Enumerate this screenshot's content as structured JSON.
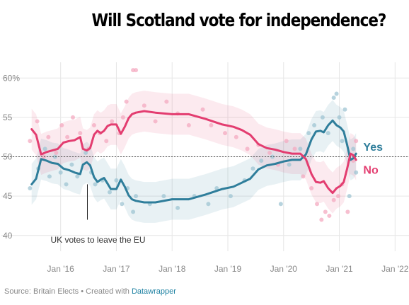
{
  "chart_data": {
    "type": "line",
    "title": "Will Scotland vote for independence?",
    "ylim": [
      38,
      62
    ],
    "xlim": [
      2015.42,
      2022.25
    ],
    "yticks": [
      40,
      45,
      50,
      55,
      60
    ],
    "ytick_labels": [
      "40",
      "45",
      "50",
      "55",
      "60%"
    ],
    "xticks": [
      2016,
      2017,
      2018,
      2019,
      2020,
      2021,
      2022
    ],
    "xtick_labels": [
      "Jan '16",
      "Jan '17",
      "Jan '18",
      "Jan '19",
      "Jan '20",
      "Jan '21",
      "Jan '22"
    ],
    "grid": true,
    "reference_line": 50,
    "series": [
      {
        "name": "Yes",
        "color": "#2f7e9b",
        "x": [
          2015.48,
          2015.56,
          2015.65,
          2015.75,
          2015.85,
          2015.95,
          2016.05,
          2016.15,
          2016.25,
          2016.35,
          2016.4,
          2016.47,
          2016.53,
          2016.6,
          2016.66,
          2016.72,
          2016.78,
          2016.84,
          2016.9,
          2017.0,
          2017.08,
          2017.15,
          2017.22,
          2017.28,
          2017.35,
          2017.5,
          2017.7,
          2018.0,
          2018.3,
          2018.6,
          2018.9,
          2019.1,
          2019.25,
          2019.4,
          2019.55,
          2019.7,
          2019.85,
          2020.0,
          2020.15,
          2020.3,
          2020.4,
          2020.5,
          2020.58,
          2020.66,
          2020.72,
          2020.8,
          2020.88,
          2020.95,
          2021.02,
          2021.08,
          2021.14,
          2021.2,
          2021.25,
          2021.3
        ],
        "y": [
          46.5,
          47.2,
          49.7,
          49.5,
          49.2,
          49.1,
          48.5,
          48.3,
          48.0,
          47.8,
          49.0,
          49.3,
          48.9,
          47.4,
          46.8,
          47.1,
          47.3,
          46.6,
          45.9,
          45.9,
          47.1,
          46.2,
          45.1,
          44.6,
          44.4,
          44.2,
          44.2,
          44.6,
          44.6,
          45.2,
          45.9,
          46.2,
          46.7,
          47.2,
          48.4,
          48.9,
          49.1,
          49.4,
          49.6,
          49.6,
          50.3,
          52.2,
          53.2,
          53.3,
          53.1,
          54.0,
          54.6,
          54.0,
          53.7,
          53.2,
          51.5,
          49.6,
          49.8,
          50.4
        ]
      },
      {
        "name": "No",
        "color": "#e33d70",
        "x": [
          2015.48,
          2015.56,
          2015.65,
          2015.75,
          2015.85,
          2015.95,
          2016.05,
          2016.15,
          2016.25,
          2016.35,
          2016.4,
          2016.47,
          2016.53,
          2016.6,
          2016.66,
          2016.72,
          2016.78,
          2016.84,
          2016.9,
          2017.0,
          2017.08,
          2017.15,
          2017.22,
          2017.28,
          2017.35,
          2017.5,
          2017.7,
          2018.0,
          2018.3,
          2018.6,
          2018.9,
          2019.1,
          2019.25,
          2019.4,
          2019.55,
          2019.7,
          2019.85,
          2020.0,
          2020.15,
          2020.3,
          2020.4,
          2020.5,
          2020.58,
          2020.66,
          2020.72,
          2020.8,
          2020.88,
          2020.95,
          2021.02,
          2021.08,
          2021.14,
          2021.2,
          2021.25,
          2021.3
        ],
        "y": [
          53.5,
          52.8,
          50.3,
          50.6,
          50.8,
          51.0,
          51.8,
          52.0,
          52.1,
          52.5,
          51.0,
          50.8,
          51.1,
          52.8,
          53.3,
          53.0,
          53.3,
          53.9,
          54.1,
          54.1,
          52.9,
          53.8,
          54.9,
          55.4,
          55.6,
          55.8,
          55.6,
          55.4,
          55.4,
          54.8,
          54.1,
          53.8,
          53.4,
          52.8,
          51.6,
          51.1,
          50.9,
          50.6,
          50.4,
          50.4,
          49.7,
          47.8,
          46.8,
          46.7,
          46.9,
          46.0,
          45.4,
          46.0,
          46.3,
          46.8,
          48.5,
          50.4,
          50.2,
          49.6
        ]
      }
    ],
    "polls": [
      {
        "series": "Yes",
        "points": [
          [
            2015.45,
            46.0
          ],
          [
            2015.6,
            48.5
          ],
          [
            2015.72,
            51.0
          ],
          [
            2015.8,
            47.5
          ],
          [
            2015.9,
            50.0
          ],
          [
            2016.0,
            48.0
          ],
          [
            2016.1,
            46.5
          ],
          [
            2016.2,
            49.0
          ],
          [
            2016.3,
            47.5
          ],
          [
            2016.45,
            50.5
          ],
          [
            2016.55,
            48.0
          ],
          [
            2016.62,
            46.5
          ],
          [
            2016.75,
            47.0
          ],
          [
            2016.88,
            45.5
          ],
          [
            2017.0,
            47.0
          ],
          [
            2017.1,
            44.0
          ],
          [
            2017.2,
            46.0
          ],
          [
            2017.3,
            43.0
          ],
          [
            2017.35,
            45.0
          ],
          [
            2017.6,
            44.0
          ],
          [
            2017.85,
            45.0
          ],
          [
            2018.1,
            43.5
          ],
          [
            2018.4,
            45.0
          ],
          [
            2018.65,
            44.0
          ],
          [
            2018.8,
            46.0
          ],
          [
            2019.05,
            45.0
          ],
          [
            2019.3,
            47.0
          ],
          [
            2019.45,
            48.5
          ],
          [
            2019.6,
            49.5
          ],
          [
            2019.8,
            50.0
          ],
          [
            2019.95,
            44.0
          ],
          [
            2020.1,
            49.0
          ],
          [
            2020.3,
            51.0
          ],
          [
            2020.45,
            53.0
          ],
          [
            2020.55,
            54.0
          ],
          [
            2020.7,
            55.0
          ],
          [
            2020.8,
            53.0
          ],
          [
            2020.9,
            57.5
          ],
          [
            2020.95,
            58.0
          ],
          [
            2021.0,
            55.0
          ],
          [
            2021.05,
            52.0
          ],
          [
            2021.1,
            56.0
          ],
          [
            2021.18,
            45.0
          ],
          [
            2021.25,
            51.0
          ],
          [
            2021.3,
            48.0
          ]
        ]
      },
      {
        "series": "No",
        "points": [
          [
            2015.45,
            52.0
          ],
          [
            2015.58,
            54.5
          ],
          [
            2015.7,
            50.0
          ],
          [
            2015.78,
            52.5
          ],
          [
            2015.92,
            50.5
          ],
          [
            2016.02,
            54.0
          ],
          [
            2016.12,
            52.5
          ],
          [
            2016.22,
            55.0
          ],
          [
            2016.35,
            53.0
          ],
          [
            2016.5,
            51.0
          ],
          [
            2016.6,
            54.0
          ],
          [
            2016.7,
            53.0
          ],
          [
            2016.82,
            52.0
          ],
          [
            2016.92,
            54.5
          ],
          [
            2017.05,
            53.0
          ],
          [
            2017.12,
            55.0
          ],
          [
            2017.18,
            57.0
          ],
          [
            2017.3,
            61.0
          ],
          [
            2017.35,
            61.0
          ],
          [
            2017.5,
            56.5
          ],
          [
            2017.7,
            54.5
          ],
          [
            2017.9,
            57.0
          ],
          [
            2018.1,
            55.5
          ],
          [
            2018.3,
            54.0
          ],
          [
            2018.55,
            56.0
          ],
          [
            2018.7,
            54.0
          ],
          [
            2018.95,
            53.0
          ],
          [
            2019.15,
            52.5
          ],
          [
            2019.35,
            51.0
          ],
          [
            2019.55,
            51.5
          ],
          [
            2019.75,
            50.5
          ],
          [
            2019.9,
            49.0
          ],
          [
            2020.05,
            52.0
          ],
          [
            2020.2,
            51.0
          ],
          [
            2020.35,
            47.5
          ],
          [
            2020.5,
            46.0
          ],
          [
            2020.6,
            44.0
          ],
          [
            2020.68,
            42.0
          ],
          [
            2020.75,
            43.0
          ],
          [
            2020.82,
            42.5
          ],
          [
            2020.9,
            44.5
          ],
          [
            2020.98,
            45.0
          ],
          [
            2021.05,
            46.5
          ],
          [
            2021.15,
            43.0
          ],
          [
            2021.25,
            49.5
          ],
          [
            2021.3,
            52.0
          ]
        ]
      }
    ],
    "annotations": [
      {
        "text": "UK votes to leave the EU",
        "x": 2016.48,
        "y": 40.5
      }
    ]
  },
  "footer": {
    "source_text": "Source: Britain Elects • Created with",
    "link_text": "Datawrapper"
  }
}
